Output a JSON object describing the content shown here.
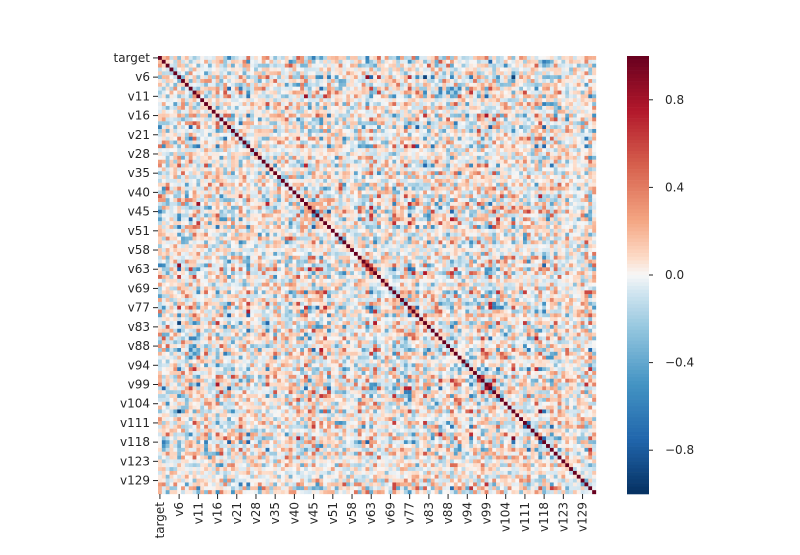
{
  "chart_data": {
    "type": "heatmap",
    "title": "",
    "xlabel": "",
    "ylabel": "",
    "row_labels": [
      "target",
      "v6",
      "v11",
      "v16",
      "v21",
      "v28",
      "v35",
      "v40",
      "v45",
      "v51",
      "v58",
      "v63",
      "v69",
      "v77",
      "v83",
      "v88",
      "v94",
      "v99",
      "v104",
      "v111",
      "v118",
      "v123",
      "v129"
    ],
    "col_labels": [
      "target",
      "v6",
      "v11",
      "v16",
      "v21",
      "v28",
      "v35",
      "v40",
      "v45",
      "v51",
      "v58",
      "v63",
      "v69",
      "v77",
      "v83",
      "v88",
      "v94",
      "v99",
      "v104",
      "v111",
      "v118",
      "v123",
      "v129"
    ],
    "grid_size": 114,
    "label_every": 5,
    "diagonal_value": 1.0,
    "value_range": [
      -1.0,
      1.0
    ],
    "colormap": "RdBu_r",
    "colorbar": {
      "ticks": [
        0.8,
        0.4,
        0.0,
        -0.4,
        -0.8
      ],
      "tick_labels": [
        "0.8",
        "0.4",
        "0.0",
        "−0.4",
        "−0.8"
      ],
      "placement": "right"
    },
    "colors": {
      "low": "#053061",
      "mid": "#f7f7f7",
      "high": "#67001f"
    }
  }
}
